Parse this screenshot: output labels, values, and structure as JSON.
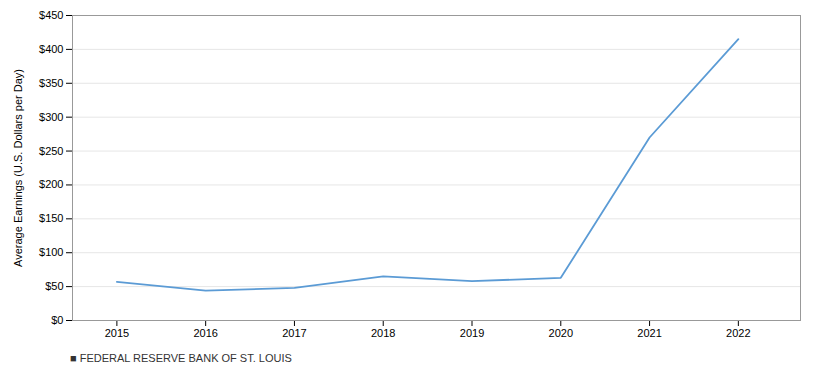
{
  "chart_data": {
    "type": "line",
    "x": [
      2015,
      2016,
      2017,
      2018,
      2019,
      2020,
      2021,
      2022
    ],
    "values": [
      57,
      44,
      48,
      65,
      58,
      63,
      270,
      415
    ],
    "color": "#5b9bd5",
    "ylabel": "Average Earnings (U.S. Dollars per Day)",
    "ylim": [
      0,
      450
    ],
    "yticks": [
      {
        "value": 0,
        "label": "$0"
      },
      {
        "value": 50,
        "label": "$50"
      },
      {
        "value": 100,
        "label": "$100"
      },
      {
        "value": 150,
        "label": "$150"
      },
      {
        "value": 200,
        "label": "$200"
      },
      {
        "value": 250,
        "label": "$250"
      },
      {
        "value": 300,
        "label": "$300"
      },
      {
        "value": 350,
        "label": "$350"
      },
      {
        "value": 400,
        "label": "$400"
      },
      {
        "value": 450,
        "label": "$450"
      }
    ],
    "xlim": [
      2014.5,
      2022.7
    ],
    "xticks": [
      2015,
      2016,
      2017,
      2018,
      2019,
      2020,
      2021,
      2022
    ],
    "grid": true,
    "caption": "■  FEDERAL RESERVE BANK OF ST. LOUIS"
  }
}
